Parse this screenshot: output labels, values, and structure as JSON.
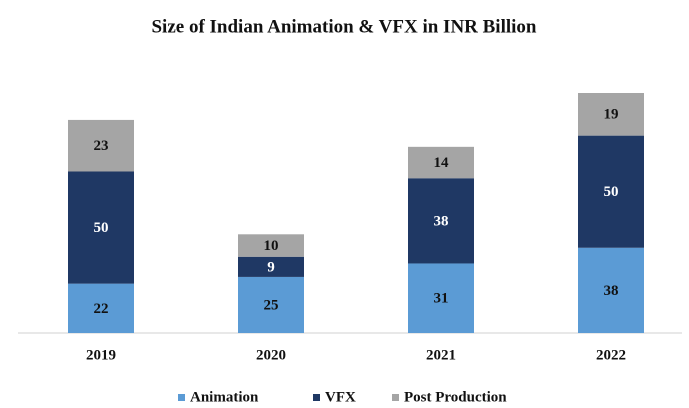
{
  "chart_data": {
    "type": "stacked_bar",
    "title": "Size of Indian Animation & VFX in INR Billion",
    "categories": [
      "2019",
      "2020",
      "2021",
      "2022"
    ],
    "series": [
      {
        "name": "Animation",
        "color": "#5b9bd5",
        "values": [
          22,
          25,
          31,
          38
        ]
      },
      {
        "name": "VFX",
        "color": "#1f3864",
        "values": [
          50,
          9,
          38,
          50
        ]
      },
      {
        "name": "Post Production",
        "color": "#a5a5a5",
        "values": [
          23,
          10,
          14,
          19
        ]
      }
    ],
    "legend": "bottom"
  }
}
